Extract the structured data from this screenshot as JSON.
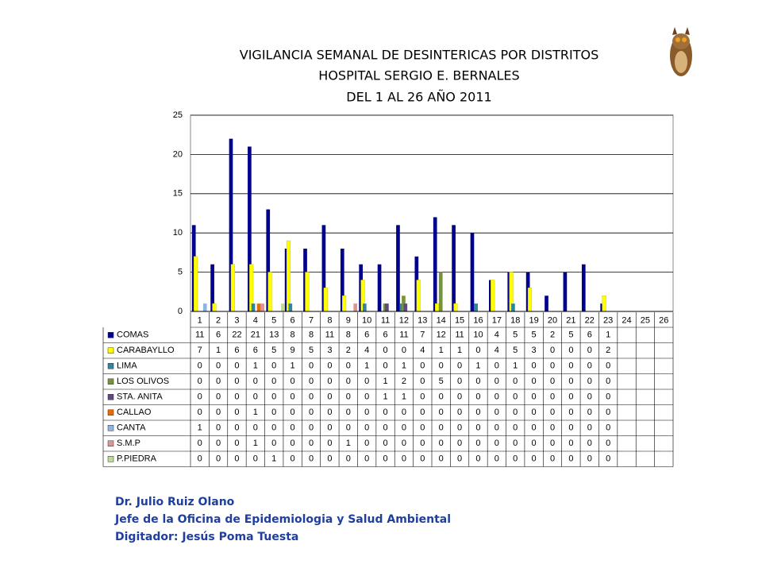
{
  "chart_data": {
    "type": "bar",
    "title_lines": [
      "VIGILANCIA SEMANAL DE DESINTERICAS POR DISTRITOS",
      "HOSPITAL SERGIO E. BERNALES",
      "DEL 1 AL 26 AÑO 2011"
    ],
    "categories": [
      "1",
      "2",
      "3",
      "4",
      "5",
      "6",
      "7",
      "8",
      "9",
      "10",
      "11",
      "12",
      "13",
      "14",
      "15",
      "16",
      "17",
      "18",
      "19",
      "20",
      "21",
      "22",
      "23",
      "24",
      "25",
      "26"
    ],
    "ylim": [
      0,
      25
    ],
    "yticks": [
      0,
      5,
      10,
      15,
      20,
      25
    ],
    "series": [
      {
        "name": "COMAS",
        "color": "#00008b",
        "values": [
          11,
          6,
          22,
          21,
          13,
          8,
          8,
          11,
          8,
          6,
          6,
          11,
          7,
          12,
          11,
          10,
          4,
          5,
          5,
          2,
          5,
          6,
          1,
          null,
          null,
          null
        ]
      },
      {
        "name": "CARABAYLLO",
        "color": "#ffff00",
        "values": [
          7,
          1,
          6,
          6,
          5,
          9,
          5,
          3,
          2,
          4,
          0,
          0,
          4,
          1,
          1,
          0,
          4,
          5,
          3,
          0,
          0,
          0,
          2,
          null,
          null,
          null
        ]
      },
      {
        "name": "LIMA",
        "color": "#31859c",
        "values": [
          0,
          0,
          0,
          1,
          0,
          1,
          0,
          0,
          0,
          1,
          0,
          1,
          0,
          0,
          0,
          1,
          0,
          1,
          0,
          0,
          0,
          0,
          0,
          null,
          null,
          null
        ]
      },
      {
        "name": "LOS OLIVOS",
        "color": "#77933c",
        "values": [
          0,
          0,
          0,
          0,
          0,
          0,
          0,
          0,
          0,
          0,
          1,
          2,
          0,
          5,
          0,
          0,
          0,
          0,
          0,
          0,
          0,
          0,
          0,
          null,
          null,
          null
        ]
      },
      {
        "name": "STA. ANITA",
        "color": "#604a7b",
        "values": [
          0,
          0,
          0,
          0,
          0,
          0,
          0,
          0,
          0,
          0,
          1,
          1,
          0,
          0,
          0,
          0,
          0,
          0,
          0,
          0,
          0,
          0,
          0,
          null,
          null,
          null
        ]
      },
      {
        "name": "CALLAO",
        "color": "#e46c0a",
        "values": [
          0,
          0,
          0,
          1,
          0,
          0,
          0,
          0,
          0,
          0,
          0,
          0,
          0,
          0,
          0,
          0,
          0,
          0,
          0,
          0,
          0,
          0,
          0,
          null,
          null,
          null
        ]
      },
      {
        "name": "CANTA",
        "color": "#8eb4e3",
        "values": [
          1,
          0,
          0,
          0,
          0,
          0,
          0,
          0,
          0,
          0,
          0,
          0,
          0,
          0,
          0,
          0,
          0,
          0,
          0,
          0,
          0,
          0,
          0,
          null,
          null,
          null
        ]
      },
      {
        "name": "S.M.P",
        "color": "#d99694",
        "values": [
          0,
          0,
          0,
          1,
          0,
          0,
          0,
          0,
          1,
          0,
          0,
          0,
          0,
          0,
          0,
          0,
          0,
          0,
          0,
          0,
          0,
          0,
          0,
          null,
          null,
          null
        ]
      },
      {
        "name": "P.PIEDRA",
        "color": "#c3d69b",
        "values": [
          0,
          0,
          0,
          0,
          1,
          0,
          0,
          0,
          0,
          0,
          0,
          0,
          0,
          0,
          0,
          0,
          0,
          0,
          0,
          0,
          0,
          0,
          0,
          null,
          null,
          null
        ]
      }
    ]
  },
  "footer": [
    "Dr.  Julio Ruiz Olano",
    "Jefe de la Oficina de Epidemiologia y  Salud Ambiental",
    "Digitador: Jesús Poma Tuesta"
  ]
}
